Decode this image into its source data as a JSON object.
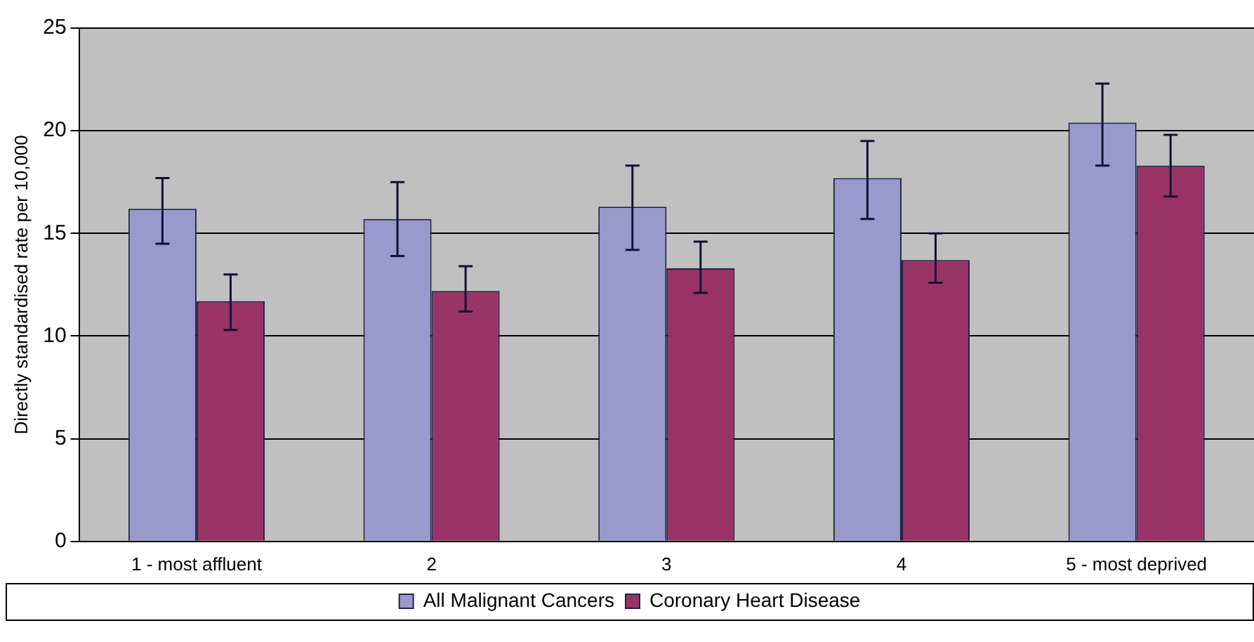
{
  "chart_data": {
    "type": "bar",
    "ylabel": "Directly standardised rate per 10,000",
    "categories": [
      "1 - most affluent",
      "2",
      "3",
      "4",
      "5 - most deprived"
    ],
    "series": [
      {
        "name": "All Malignant Cancers",
        "color": "#9999cc",
        "values": [
          16.2,
          15.7,
          16.3,
          17.7,
          20.4
        ],
        "errors": [
          [
            14.5,
            17.7
          ],
          [
            13.9,
            17.5
          ],
          [
            14.2,
            18.3
          ],
          [
            15.7,
            19.5
          ],
          [
            18.3,
            22.3
          ]
        ]
      },
      {
        "name": "Coronary Heart Disease",
        "color": "#993366",
        "values": [
          11.7,
          12.2,
          13.3,
          13.7,
          18.3
        ],
        "errors": [
          [
            10.3,
            13.0
          ],
          [
            11.2,
            13.4
          ],
          [
            12.1,
            14.6
          ],
          [
            12.6,
            15.0
          ],
          [
            16.8,
            19.8
          ]
        ]
      }
    ],
    "ylim": [
      0,
      25
    ],
    "yticks": [
      0,
      5,
      10,
      15,
      20,
      25
    ],
    "grid": "y",
    "legend": "bottom"
  }
}
